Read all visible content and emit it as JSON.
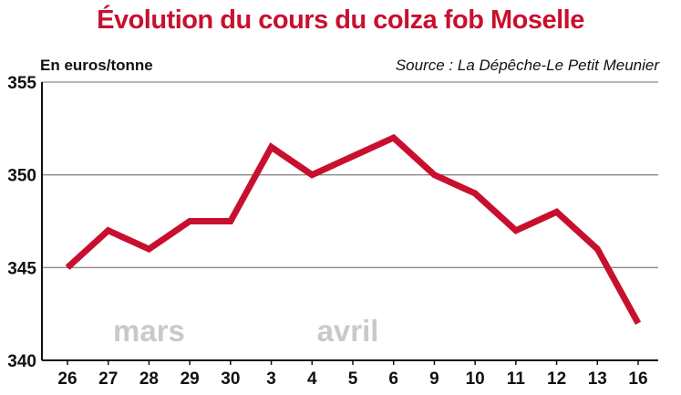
{
  "chart_data": {
    "type": "line",
    "title": "Évolution du cours du colza fob Moselle",
    "ylabel": "En euros/tonne",
    "source": "Source : La Dépêche-Le Petit Meunier",
    "ylim": [
      340,
      355
    ],
    "yticks": [
      340,
      345,
      350,
      355
    ],
    "categories": [
      "26",
      "27",
      "28",
      "29",
      "30",
      "3",
      "4",
      "5",
      "6",
      "9",
      "10",
      "11",
      "12",
      "13",
      "16"
    ],
    "months": [
      {
        "label": "mars",
        "from_index": 0
      },
      {
        "label": "avril",
        "from_index": 5
      }
    ],
    "series": [
      {
        "color": "#c8102e",
        "values": [
          345,
          347,
          346,
          347.5,
          347.5,
          351.5,
          350,
          351,
          352,
          350,
          349,
          347,
          348,
          346,
          342
        ]
      }
    ],
    "grid": true
  }
}
